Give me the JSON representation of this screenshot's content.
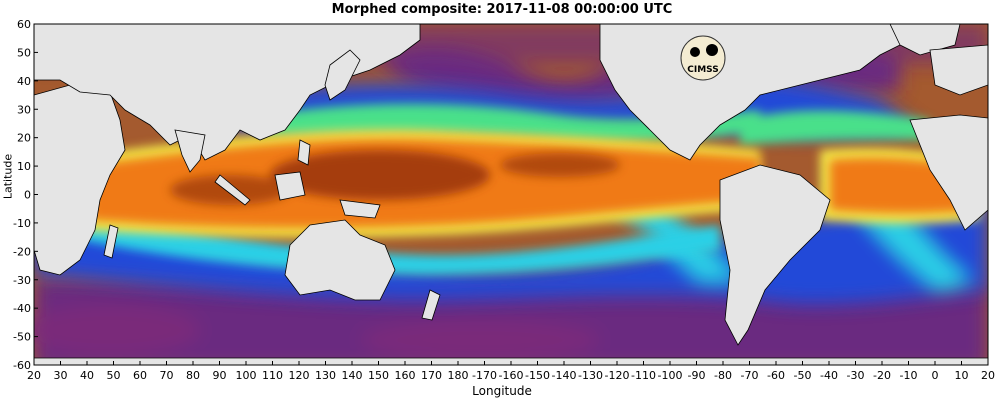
{
  "title": "Morphed composite: 2017-11-08 00:00:00 UTC",
  "xlabel": "Longitude",
  "ylabel": "Latitude",
  "logo_text": "CIMSS",
  "colors": {
    "land": "#e5e5e5",
    "border": "#000000",
    "dry_brown": "#a45a2f",
    "purple": "#6a1f7a",
    "blue": "#1a46d6",
    "cyan": "#2ad0e6",
    "green": "#49e08a",
    "yellow": "#f2e64a",
    "orange": "#f07a18",
    "dark_orange": "#a53d08"
  },
  "chart_data": {
    "type": "heatmap",
    "title": "Morphed composite: 2017-11-08 00:00:00 UTC",
    "xlabel": "Longitude",
    "ylabel": "Latitude",
    "xlim": [
      20,
      380
    ],
    "ylim": [
      -60,
      60
    ],
    "x_ticks": [
      20,
      30,
      40,
      50,
      60,
      70,
      80,
      90,
      100,
      110,
      120,
      130,
      140,
      150,
      160,
      170,
      180,
      190,
      200,
      210,
      220,
      230,
      240,
      250,
      260,
      270,
      280,
      290,
      300,
      310,
      320,
      330,
      340,
      350,
      360,
      370,
      380
    ],
    "x_tick_labels": [
      "20",
      "30",
      "40",
      "50",
      "60",
      "70",
      "80",
      "90",
      "100",
      "110",
      "120",
      "130",
      "140",
      "150",
      "160",
      "170",
      "180",
      "-170",
      "-160",
      "-150",
      "-140",
      "-130",
      "-120",
      "-110",
      "-100",
      "-90",
      "-80",
      "-70",
      "-60",
      "-50",
      "-40",
      "-30",
      "-20",
      "-10",
      "0",
      "10",
      "20"
    ],
    "y_ticks": [
      -60,
      -50,
      -40,
      -30,
      -20,
      -10,
      0,
      10,
      20,
      30,
      40,
      50,
      60
    ],
    "y_tick_labels": [
      "-60",
      "-50",
      "-40",
      "-30",
      "-20",
      "-10",
      "0",
      "10",
      "20",
      "30",
      "40",
      "50",
      "60"
    ],
    "grid": false,
    "legend": "none"
  }
}
